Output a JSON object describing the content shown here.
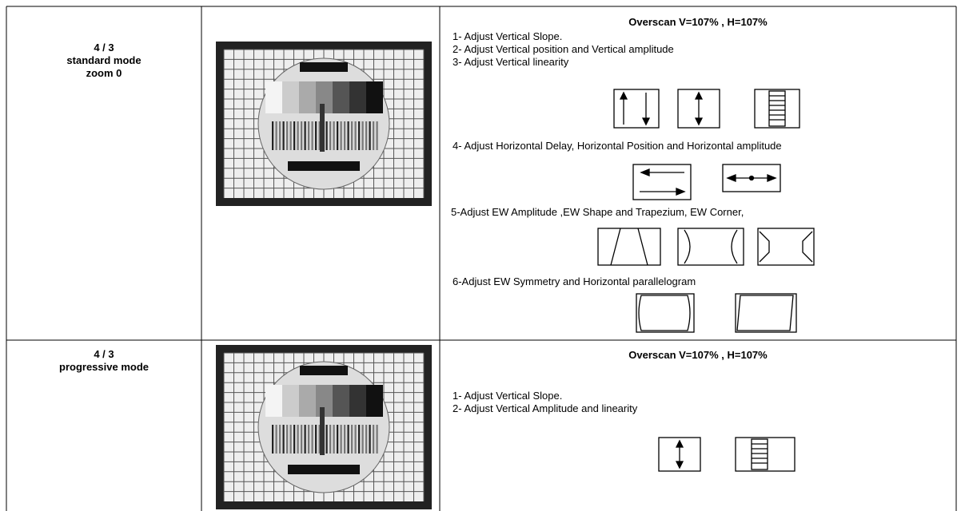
{
  "table": {
    "rows": [
      {
        "mode": [
          "4 / 3",
          "standard mode",
          "zoom 0"
        ],
        "heading": "Overscan V=107% , H=107%",
        "steps": [
          "1- Adjust Vertical Slope.",
          "2- Adjust Vertical position and Vertical amplitude",
          "3- Adjust Vertical linearity",
          "4- Adjust Horizontal Delay, Horizontal Position and Horizontal amplitude",
          "5-Adjust EW Amplitude ,EW Shape and Trapezium, EW Corner,",
          "6-Adjust EW Symmetry and Horizontal parallelogram"
        ]
      },
      {
        "mode": [
          "4 / 3",
          "progressive mode"
        ],
        "heading": "Overscan V=107% , H=107%",
        "steps": [
          "1- Adjust Vertical Slope.",
          "2- Adjust Vertical Amplitude and linearity"
        ]
      }
    ]
  }
}
